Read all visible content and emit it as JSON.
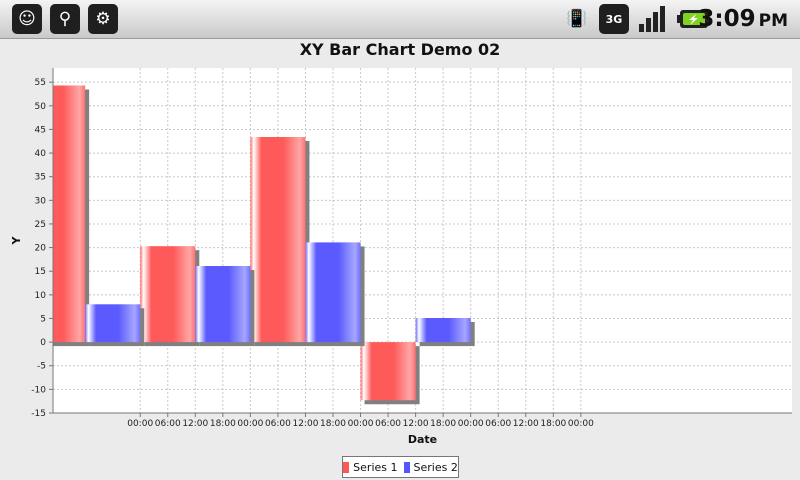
{
  "status_bar": {
    "time": "3:09",
    "ampm": "PM",
    "signal_label": "3G",
    "icons": [
      "chat-icon",
      "usb-icon",
      "android-icon",
      "vibrate-icon",
      "data-3g-icon",
      "signal-icon",
      "battery-charging-icon"
    ]
  },
  "colors": {
    "series1": "#ff5555",
    "series2": "#5555ff",
    "shadow": "#808080"
  },
  "chart_data": {
    "type": "bar",
    "title": "XY Bar Chart Demo 02",
    "xlabel": "Date",
    "ylabel": "Y",
    "ylim": [
      -15,
      58
    ],
    "yticks": [
      -15,
      -10,
      -5,
      0,
      5,
      10,
      15,
      20,
      25,
      30,
      35,
      40,
      45,
      50,
      55
    ],
    "xlim_hours": [
      -19,
      142
    ],
    "xtick_labels": [
      "00:00",
      "06:00",
      "12:00",
      "18:00",
      "00:00",
      "06:00",
      "12:00",
      "18:00",
      "00:00",
      "06:00",
      "12:00",
      "18:00",
      "00:00",
      "06:00",
      "12:00",
      "18:00",
      "00:00"
    ],
    "xtick_hours": [
      0,
      6,
      12,
      18,
      24,
      30,
      36,
      42,
      48,
      54,
      60,
      66,
      72,
      78,
      84,
      90,
      96
    ],
    "grid": true,
    "legend_position": "bottom",
    "series": [
      {
        "name": "Series 1",
        "color": "#ff5555",
        "bars": [
          {
            "x0": -24,
            "x1": -12,
            "y": 54.3
          },
          {
            "x0": 0,
            "x1": 12,
            "y": 20.3
          },
          {
            "x0": 24,
            "x1": 36,
            "y": 43.4
          },
          {
            "x0": 48,
            "x1": 60,
            "y": -12.3
          }
        ]
      },
      {
        "name": "Series 2",
        "color": "#5555ff",
        "bars": [
          {
            "x0": -12,
            "x1": 0,
            "y": 8.0
          },
          {
            "x0": 12,
            "x1": 24,
            "y": 16.1
          },
          {
            "x0": 36,
            "x1": 48,
            "y": 21.1
          },
          {
            "x0": 60,
            "x1": 72,
            "y": 5.1
          }
        ]
      }
    ]
  }
}
